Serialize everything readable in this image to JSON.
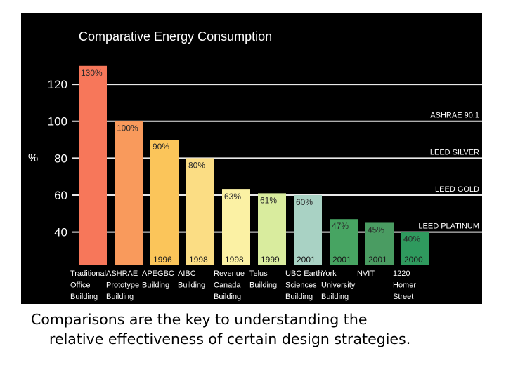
{
  "chart_data": {
    "type": "bar",
    "title": "Comparative Energy Consumption",
    "ylabel": "%",
    "yticks": [
      40,
      60,
      80,
      100,
      120
    ],
    "ylim": [
      22,
      136
    ],
    "categories": [
      [
        "Traditional",
        "Office",
        "Building"
      ],
      [
        "ASHRAE",
        "Prototype",
        "Building"
      ],
      [
        "APEGBC",
        "Building"
      ],
      [
        "AIBC",
        "Building"
      ],
      [
        "Revenue",
        "Canada",
        "Building"
      ],
      [
        "Telus",
        "Building"
      ],
      [
        "UBC Earth",
        "Sciences",
        "Building"
      ],
      [
        "York",
        "University",
        "Building"
      ],
      [
        "NVIT"
      ],
      [
        "1220",
        "Homer",
        "Street"
      ]
    ],
    "values": [
      130,
      100,
      90,
      80,
      63,
      61,
      60,
      47,
      45,
      40
    ],
    "value_labels": [
      "130%",
      "100%",
      "90%",
      "80%",
      "63%",
      "61%",
      "60%",
      "47%",
      "45%",
      "40%"
    ],
    "years": [
      "",
      "",
      "1996",
      "1998",
      "1998",
      "1999",
      "2001",
      "2001",
      "2001",
      "2000"
    ],
    "colors": [
      "#f7775a",
      "#f99a5c",
      "#fbc55a",
      "#fbdd84",
      "#fbf1a4",
      "#d9ec9e",
      "#a9d2c4",
      "#47a462",
      "#4a9c62",
      "#2f9a5e"
    ],
    "reference_lines": [
      {
        "label": "ASHRAE 90.1",
        "value": 100
      },
      {
        "label": "LEED SILVER",
        "value": 80
      },
      {
        "label": "LEED GOLD",
        "value": 60
      },
      {
        "label": "LEED PLATINUM",
        "value": 40
      }
    ],
    "grid": true
  },
  "caption": {
    "line1": "Comparisons are the key to understanding the",
    "line2": "relative effectiveness of certain design strategies."
  }
}
